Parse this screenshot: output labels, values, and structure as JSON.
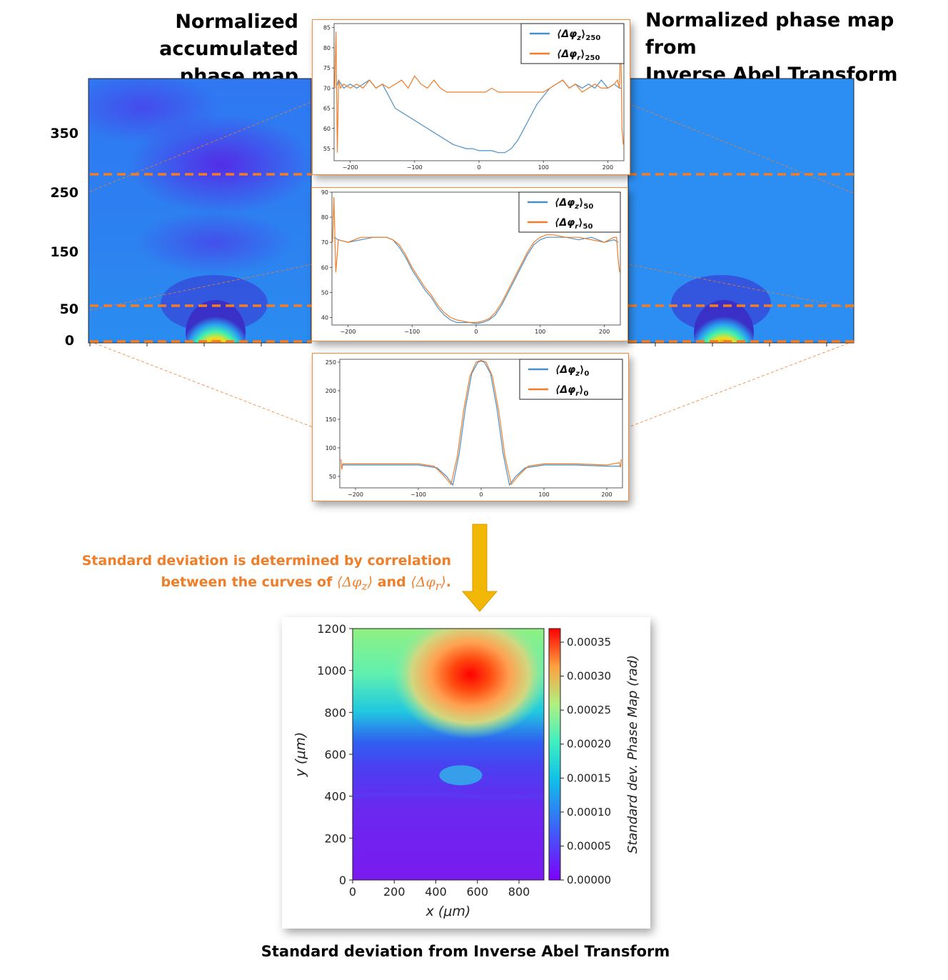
{
  "headings": {
    "left_line1": "Normalized accumulated",
    "left_line2": "phase map",
    "right_line1": "Normalized phase map from",
    "right_line2": "Inverse Abel Transform"
  },
  "map_y_labels": [
    "350",
    "250",
    "150",
    "50",
    "0"
  ],
  "map_y_values": [
    350,
    250,
    150,
    50,
    0
  ],
  "map_ylim": [
    0,
    400
  ],
  "dashed_rows": [
    250,
    50,
    0
  ],
  "colors": {
    "orange": "#f07d28",
    "blue": "#4a90c8",
    "arrow": "#f2b705"
  },
  "note": {
    "line1": "Standard deviation is determined by correlation",
    "line2_a": "between the curves of ",
    "sym_z": "⟨Δφ",
    "sub_z": "z",
    "sym_r": "⟨Δφ",
    "sub_r": "r",
    "close": "⟩",
    "and": " and ",
    "period": "."
  },
  "caption": "Standard deviation from Inverse Abel Transform",
  "chart_data": [
    {
      "type": "line",
      "xlim": [
        -225,
        225
      ],
      "ylim": [
        52,
        86
      ],
      "xticks": [
        -200,
        -100,
        0,
        100,
        200
      ],
      "yticks": [
        55,
        60,
        65,
        70,
        75,
        80,
        85
      ],
      "series": [
        {
          "name": "⟨Δφz⟩250",
          "sym": "⟨Δφ",
          "sub1": "z",
          "sub2": "250",
          "color": "#4a90c8",
          "x": [
            -222,
            -218,
            -210,
            -200,
            -190,
            -180,
            -170,
            -160,
            -150,
            -140,
            -130,
            -120,
            -110,
            -100,
            -90,
            -80,
            -70,
            -60,
            -50,
            -40,
            -30,
            -20,
            -10,
            0,
            10,
            20,
            30,
            40,
            50,
            60,
            70,
            80,
            90,
            100,
            110,
            120,
            130,
            140,
            150,
            160,
            170,
            180,
            190,
            200,
            210,
            218,
            222
          ],
          "y": [
            70,
            72,
            70,
            71,
            70,
            71,
            72,
            70,
            71,
            68,
            65,
            64,
            63,
            62,
            61,
            60,
            59,
            58,
            57,
            56,
            55.5,
            55,
            55,
            54.5,
            54.5,
            54.5,
            54,
            54,
            55,
            57,
            60,
            63,
            66,
            68,
            70,
            71,
            72,
            70,
            71,
            70,
            71,
            70,
            72,
            70,
            71,
            70,
            70
          ]
        },
        {
          "name": "⟨Δφr⟩250",
          "sym": "⟨Δφ",
          "sub1": "r",
          "sub2": "250",
          "color": "#f07d28",
          "x": [
            -224,
            -222,
            -220,
            -218,
            -215,
            -210,
            -200,
            -190,
            -180,
            -170,
            -160,
            -150,
            -140,
            -130,
            -120,
            -110,
            -100,
            -90,
            -80,
            -70,
            -60,
            -50,
            -40,
            -30,
            -20,
            -10,
            0,
            10,
            20,
            30,
            40,
            50,
            60,
            70,
            80,
            90,
            100,
            110,
            120,
            130,
            140,
            150,
            160,
            170,
            180,
            190,
            200,
            210,
            215,
            218,
            220,
            222,
            224
          ],
          "y": [
            70,
            84,
            54,
            72,
            70,
            71,
            70,
            71,
            70,
            72,
            70,
            71,
            70,
            71,
            72,
            70,
            73,
            71,
            70,
            72,
            70,
            69,
            69,
            69,
            69,
            69,
            69,
            69,
            70,
            69,
            69,
            69,
            69,
            69,
            69,
            69,
            69,
            70,
            71,
            72,
            70,
            71,
            69,
            70,
            71,
            70,
            70,
            71,
            72,
            70,
            84,
            60,
            56
          ]
        }
      ]
    },
    {
      "type": "line",
      "xlim": [
        -225,
        225
      ],
      "ylim": [
        37,
        90
      ],
      "xticks": [
        -200,
        -100,
        0,
        100,
        200
      ],
      "yticks": [
        40,
        50,
        60,
        70,
        80,
        90
      ],
      "series": [
        {
          "name": "⟨Δφz⟩50",
          "sym": "⟨Δφ",
          "sub1": "z",
          "sub2": "50",
          "color": "#4a90c8",
          "x": [
            -222,
            -215,
            -200,
            -180,
            -160,
            -140,
            -130,
            -120,
            -110,
            -100,
            -90,
            -80,
            -70,
            -60,
            -50,
            -40,
            -30,
            -20,
            -10,
            0,
            10,
            20,
            30,
            40,
            50,
            60,
            70,
            80,
            90,
            100,
            110,
            120,
            140,
            160,
            180,
            200,
            215,
            222
          ],
          "y": [
            72,
            71,
            70,
            71,
            72,
            72,
            71,
            68,
            64,
            59,
            55,
            51,
            48,
            44,
            41,
            39,
            38,
            38,
            38,
            37.5,
            38,
            39,
            41,
            45,
            50,
            55,
            60,
            65,
            69,
            71,
            72,
            72,
            72,
            71,
            72,
            70,
            71,
            70
          ]
        },
        {
          "name": "⟨Δφr⟩50",
          "sym": "⟨Δφ",
          "sub1": "r",
          "sub2": "50",
          "color": "#f07d28",
          "x": [
            -224,
            -222,
            -219,
            -215,
            -200,
            -180,
            -160,
            -140,
            -130,
            -120,
            -110,
            -100,
            -90,
            -80,
            -70,
            -60,
            -50,
            -40,
            -30,
            -20,
            -10,
            0,
            10,
            20,
            30,
            40,
            50,
            60,
            70,
            80,
            90,
            100,
            110,
            120,
            140,
            160,
            180,
            200,
            215,
            219,
            222,
            224
          ],
          "y": [
            70,
            88,
            58,
            71,
            70,
            72,
            72,
            72,
            71,
            69,
            65,
            60,
            56,
            52,
            49,
            45,
            42,
            40,
            39,
            38.5,
            38,
            38,
            38.5,
            39.5,
            42,
            46,
            51,
            56,
            61,
            66,
            70,
            72,
            73,
            73,
            72,
            72,
            71,
            70,
            72,
            72,
            62,
            58
          ]
        }
      ]
    },
    {
      "type": "line",
      "xlim": [
        -225,
        225
      ],
      "ylim": [
        30,
        255
      ],
      "xticks": [
        -200,
        -100,
        0,
        100,
        200
      ],
      "yticks": [
        50,
        100,
        150,
        200,
        250
      ],
      "series": [
        {
          "name": "⟨Δφz⟩0",
          "sym": "⟨Δφ",
          "sub1": "z",
          "sub2": "0",
          "color": "#4a90c8",
          "x": [
            -222,
            -200,
            -150,
            -100,
            -70,
            -55,
            -45,
            -35,
            -25,
            -15,
            -5,
            0,
            5,
            15,
            25,
            35,
            45,
            55,
            70,
            100,
            150,
            200,
            222
          ],
          "y": [
            70,
            70,
            70,
            70,
            65,
            50,
            35,
            90,
            170,
            230,
            250,
            252,
            250,
            230,
            170,
            90,
            35,
            50,
            65,
            70,
            70,
            68,
            68
          ]
        },
        {
          "name": "⟨Δφr⟩0",
          "sym": "⟨Δφ",
          "sub1": "r",
          "sub2": "0",
          "color": "#f07d28",
          "x": [
            -223,
            -222,
            -220,
            -200,
            -150,
            -100,
            -75,
            -60,
            -48,
            -38,
            -28,
            -18,
            -8,
            0,
            8,
            18,
            28,
            38,
            48,
            60,
            75,
            100,
            150,
            200,
            220,
            222,
            223
          ],
          "y": [
            80,
            62,
            72,
            72,
            72,
            72,
            68,
            52,
            36,
            85,
            165,
            225,
            250,
            253,
            250,
            225,
            165,
            85,
            36,
            52,
            68,
            72,
            72,
            70,
            74,
            66,
            80
          ]
        }
      ]
    },
    {
      "type": "heatmap",
      "xlabel": "x (μm)",
      "ylabel": "y (μm)",
      "colorbar_label": "Standard dev. Phase Map (rad)",
      "xlim": [
        0,
        920
      ],
      "ylim": [
        0,
        1200
      ],
      "xticks": [
        "0",
        "200",
        "400",
        "600",
        "800"
      ],
      "xtick_values": [
        0,
        200,
        400,
        600,
        800
      ],
      "yticks": [
        "0",
        "200",
        "400",
        "600",
        "800",
        "1000",
        "1200"
      ],
      "ytick_values": [
        0,
        200,
        400,
        600,
        800,
        1000,
        1200
      ],
      "colorbar_range": [
        0,
        0.00037
      ],
      "colorbar_ticks": [
        "0.00000",
        "0.00005",
        "0.00010",
        "0.00015",
        "0.00020",
        "0.00025",
        "0.00030",
        "0.00035"
      ],
      "colorbar_tick_values": [
        0,
        5e-05,
        0.0001,
        0.00015,
        0.0002,
        0.00025,
        0.0003,
        0.00035
      ],
      "peak": {
        "x": 600,
        "y": 980,
        "value": 0.00037
      }
    }
  ]
}
